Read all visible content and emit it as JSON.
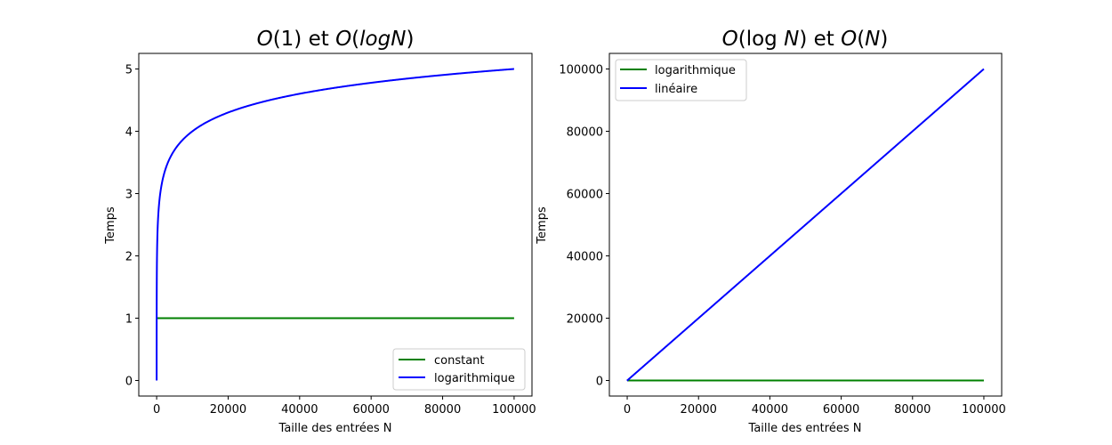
{
  "chart_data": [
    {
      "type": "line",
      "title": "O(1) et O(logN)",
      "title_parts": {
        "o1": "O",
        "n1": "(1) et ",
        "o2": "O",
        "n2": "(",
        "log": "logN",
        "n3": ")"
      },
      "xlabel": "Taille des entrées N",
      "ylabel": "Temps",
      "xlim": [
        -5000,
        105000
      ],
      "ylim": [
        -0.25,
        5.25
      ],
      "xticks": [
        0,
        20000,
        40000,
        60000,
        80000,
        100000
      ],
      "yticks": [
        0,
        1,
        2,
        3,
        4,
        5
      ],
      "legend_position": "lower-right",
      "series": [
        {
          "name": "constant",
          "color": "#008000",
          "function": "constant",
          "x_range": [
            1,
            100000
          ],
          "value": 1
        },
        {
          "name": "logarithmique",
          "color": "#0000ff",
          "function": "log10",
          "x_range": [
            1,
            100000
          ]
        }
      ]
    },
    {
      "type": "line",
      "title": "O(log N) et O(N)",
      "title_parts": {
        "o1": "O",
        "n1": "(log ",
        "N1": "N",
        "n2": ") et ",
        "o2": "O",
        "n3": "(",
        "N2": "N",
        "n4": ")"
      },
      "xlabel": "Taille des entrées N",
      "ylabel": "Temps",
      "xlim": [
        -5000,
        105000
      ],
      "ylim": [
        -5000,
        105000
      ],
      "xticks": [
        0,
        20000,
        40000,
        60000,
        80000,
        100000
      ],
      "yticks": [
        0,
        20000,
        40000,
        60000,
        80000,
        100000
      ],
      "legend_position": "upper-left",
      "series": [
        {
          "name": "logarithmique",
          "color": "#008000",
          "function": "log10",
          "x_range": [
            1,
            100000
          ]
        },
        {
          "name": "linéaire",
          "color": "#0000ff",
          "function": "linear",
          "x_range": [
            1,
            100000
          ]
        }
      ]
    }
  ]
}
